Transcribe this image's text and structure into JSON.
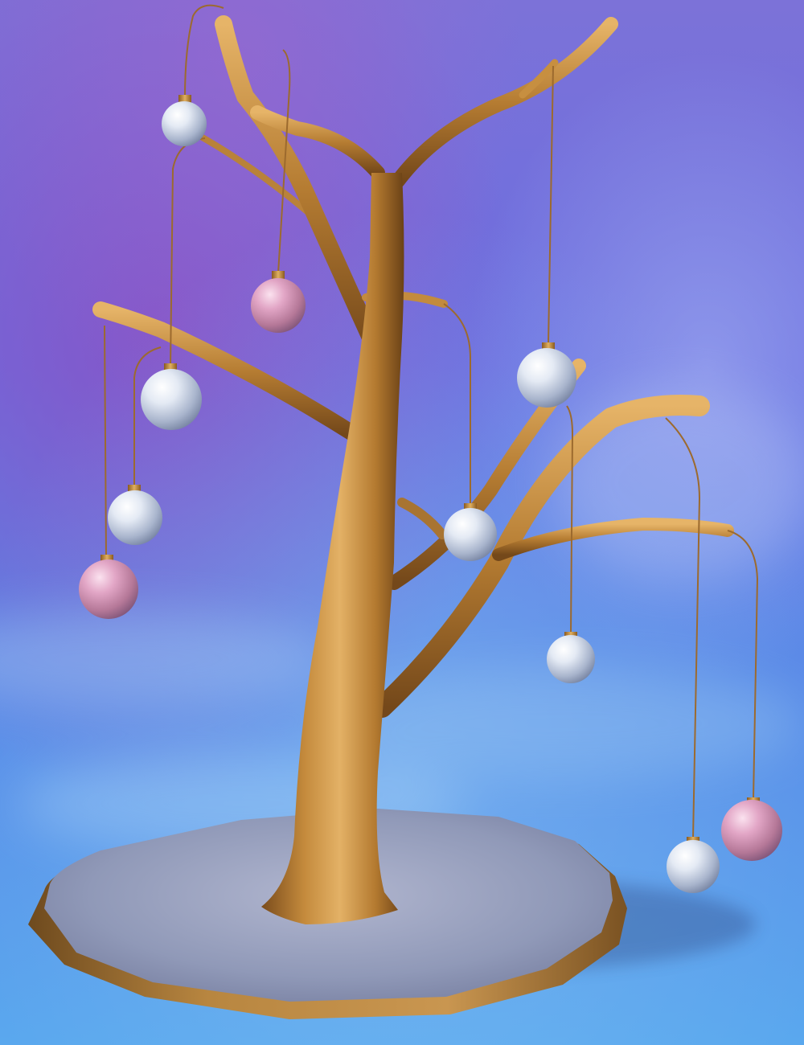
{
  "scene": {
    "subject": "ornament-tree",
    "colors": {
      "sky_top": "#7a6fd6",
      "sky_purple": "#8e5fc9",
      "sky_mid": "#5d7fe3",
      "sky_bottom": "#5aa6ec",
      "bronze_light": "#e0ac5c",
      "bronze_mid": "#b67d30",
      "bronze_dark": "#6d4418",
      "base_top": "#9aa3c2",
      "base_rim": "#9a6a2c",
      "silver": "#dfe6f2",
      "pink": "#e6a4c6"
    },
    "ornaments": [
      {
        "color": "silver"
      },
      {
        "color": "pink"
      },
      {
        "color": "silver"
      },
      {
        "color": "silver"
      },
      {
        "color": "pink"
      },
      {
        "color": "silver"
      },
      {
        "color": "silver"
      },
      {
        "color": "silver"
      },
      {
        "color": "silver"
      },
      {
        "color": "pink"
      }
    ]
  }
}
